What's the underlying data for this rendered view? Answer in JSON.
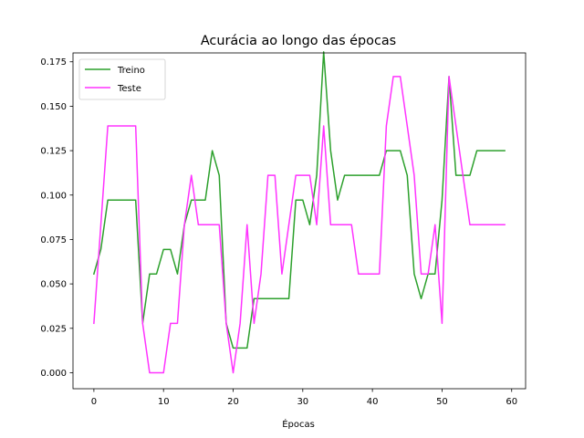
{
  "chart_data": {
    "type": "line",
    "title": "Acurácia ao longo das épocas",
    "xlabel": "Épocas",
    "ylabel": "",
    "xlim": [
      -3,
      62
    ],
    "ylim": [
      -0.009,
      0.18
    ],
    "xticks": [
      0,
      10,
      20,
      30,
      40,
      50,
      60
    ],
    "yticks": [
      0.0,
      0.025,
      0.05,
      0.075,
      0.1,
      0.125,
      0.15,
      0.175
    ],
    "ytick_labels": [
      "0.000",
      "0.025",
      "0.050",
      "0.075",
      "0.100",
      "0.125",
      "0.150",
      "0.175"
    ],
    "grid": false,
    "legend_position": "top-left",
    "x": [
      0,
      1,
      2,
      3,
      4,
      5,
      6,
      7,
      8,
      9,
      10,
      11,
      12,
      13,
      14,
      15,
      16,
      17,
      18,
      19,
      20,
      21,
      22,
      23,
      24,
      25,
      26,
      27,
      28,
      29,
      30,
      31,
      32,
      33,
      34,
      35,
      36,
      37,
      38,
      39,
      40,
      41,
      42,
      43,
      44,
      45,
      46,
      47,
      48,
      49,
      50,
      51,
      52,
      53,
      54,
      55,
      56,
      57,
      58,
      59
    ],
    "series": [
      {
        "name": "Treino",
        "color": "#2ca02c",
        "values": [
          0.0556,
          0.0694,
          0.0972,
          0.0972,
          0.0972,
          0.0972,
          0.0972,
          0.0278,
          0.0556,
          0.0556,
          0.0694,
          0.0694,
          0.0556,
          0.0833,
          0.0972,
          0.0972,
          0.0972,
          0.125,
          0.1111,
          0.0278,
          0.0139,
          0.0139,
          0.0139,
          0.0417,
          0.0417,
          0.0417,
          0.0417,
          0.0417,
          0.0417,
          0.0972,
          0.0972,
          0.0833,
          0.1111,
          0.1806,
          0.125,
          0.0972,
          0.1111,
          0.1111,
          0.1111,
          0.1111,
          0.1111,
          0.1111,
          0.125,
          0.125,
          0.125,
          0.1111,
          0.0556,
          0.0417,
          0.0556,
          0.0556,
          0.0972,
          0.1667,
          0.1111,
          0.1111,
          0.1111,
          0.125,
          0.125,
          0.125,
          0.125,
          0.125
        ]
      },
      {
        "name": "Teste",
        "color": "#ff33ff",
        "values": [
          0.0278,
          0.0833,
          0.1389,
          0.1389,
          0.1389,
          0.1389,
          0.1389,
          0.0278,
          0.0,
          0.0,
          0.0,
          0.0278,
          0.0278,
          0.0833,
          0.1111,
          0.0833,
          0.0833,
          0.0833,
          0.0833,
          0.0278,
          0.0,
          0.0278,
          0.0833,
          0.0278,
          0.0556,
          0.1111,
          0.1111,
          0.0556,
          0.0833,
          0.1111,
          0.1111,
          0.1111,
          0.0833,
          0.1389,
          0.0833,
          0.0833,
          0.0833,
          0.0833,
          0.0556,
          0.0556,
          0.0556,
          0.0556,
          0.1389,
          0.1667,
          0.1667,
          0.1389,
          0.1111,
          0.0556,
          0.0556,
          0.0833,
          0.0278,
          0.1667,
          0.1389,
          0.1111,
          0.0833,
          0.0833,
          0.0833,
          0.0833,
          0.0833,
          0.0833
        ]
      }
    ]
  }
}
